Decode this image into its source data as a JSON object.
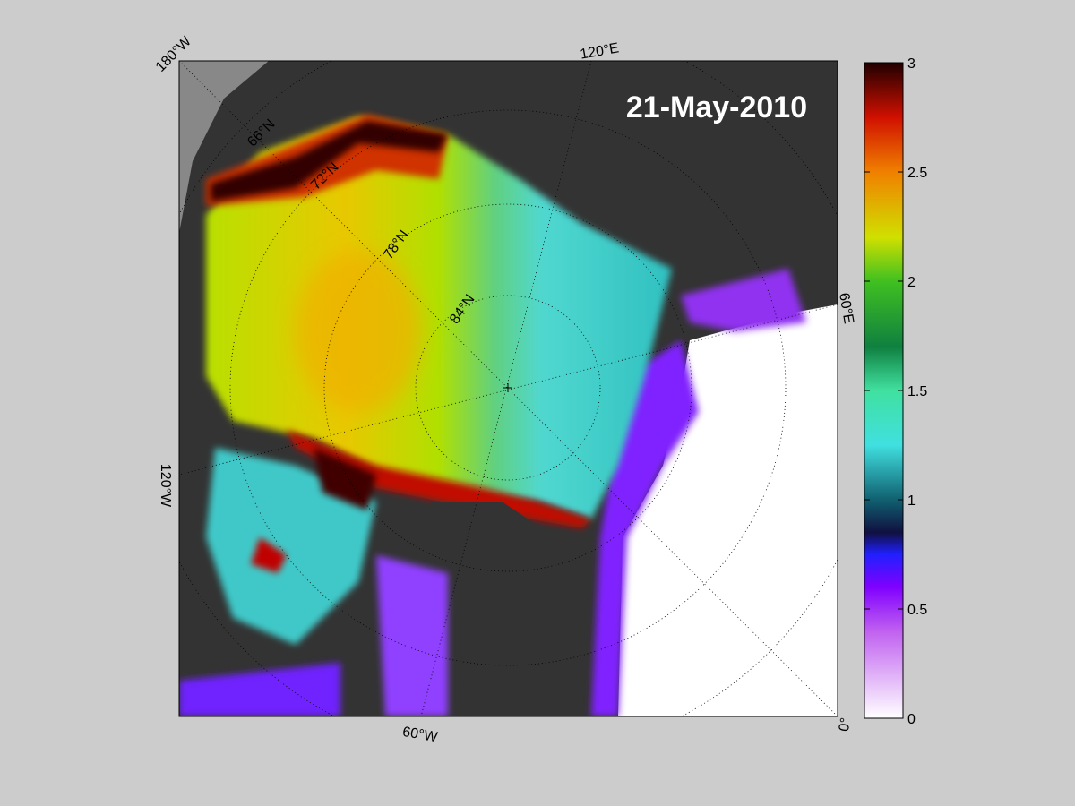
{
  "title": "21-May-2010",
  "map": {
    "longitude_labels": [
      "180°W",
      "120°E",
      "60°E",
      "0°",
      "60°W",
      "120°W"
    ],
    "latitude_labels": [
      "66°N",
      "72°N",
      "78°N",
      "84°N"
    ]
  },
  "colorbar": {
    "lim": [
      0,
      3
    ],
    "ticks": [
      0,
      0.5,
      1,
      1.5,
      2,
      2.5,
      3
    ],
    "colormap": [
      {
        "value": 0,
        "color": "#ffffff"
      },
      {
        "value": 0.4,
        "color": "#c060f0"
      },
      {
        "value": 0.6,
        "color": "#8000ff"
      },
      {
        "value": 0.75,
        "color": "#2020ff"
      },
      {
        "value": 0.85,
        "color": "#101040"
      },
      {
        "value": 1,
        "color": "#106070"
      },
      {
        "value": 1.25,
        "color": "#40e0e0"
      },
      {
        "value": 1.5,
        "color": "#40e0a0"
      },
      {
        "value": 1.7,
        "color": "#108040"
      },
      {
        "value": 2,
        "color": "#40c020"
      },
      {
        "value": 2.2,
        "color": "#d0e000"
      },
      {
        "value": 2.5,
        "color": "#f08000"
      },
      {
        "value": 2.75,
        "color": "#d01000"
      },
      {
        "value": 3,
        "color": "#200000"
      }
    ]
  }
}
